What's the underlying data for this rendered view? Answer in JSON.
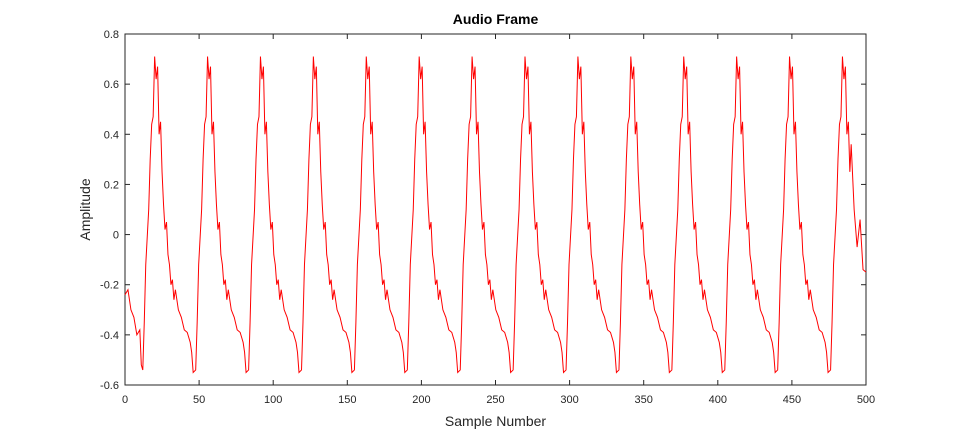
{
  "chart_data": {
    "type": "line",
    "title": "Audio Frame",
    "xlabel": "Sample Number",
    "ylabel": "Amplitude",
    "xlim": [
      0,
      500
    ],
    "ylim": [
      -0.6,
      0.8
    ],
    "xticks": [
      0,
      50,
      100,
      150,
      200,
      250,
      300,
      350,
      400,
      450,
      500
    ],
    "yticks": [
      -0.6,
      -0.4,
      -0.2,
      0,
      0.2,
      0.4,
      0.6,
      0.8
    ],
    "grid": false,
    "line_color": "#ff0000",
    "period_samples": 35.7,
    "series": [
      {
        "name": "Audio Frame",
        "waveform_cycle": [
          [
            0,
            -0.52
          ],
          [
            1,
            -0.54
          ],
          [
            2,
            -0.35
          ],
          [
            3,
            -0.12
          ],
          [
            5,
            0.1
          ],
          [
            6,
            0.3
          ],
          [
            7,
            0.44
          ],
          [
            8,
            0.47
          ],
          [
            9,
            0.71
          ],
          [
            10,
            0.62
          ],
          [
            11,
            0.67
          ],
          [
            12,
            0.4
          ],
          [
            13,
            0.45
          ],
          [
            14,
            0.25
          ],
          [
            15,
            0.12
          ],
          [
            16,
            0.02
          ],
          [
            17,
            0.05
          ],
          [
            18,
            -0.08
          ],
          [
            19,
            -0.12
          ],
          [
            20,
            -0.2
          ],
          [
            21,
            -0.18
          ],
          [
            22,
            -0.26
          ],
          [
            23,
            -0.22
          ],
          [
            25,
            -0.3
          ],
          [
            27,
            -0.33
          ],
          [
            29,
            -0.38
          ],
          [
            31,
            -0.39
          ],
          [
            33,
            -0.43
          ],
          [
            34,
            -0.47
          ],
          [
            35,
            -0.55
          ]
        ],
        "start": [
          [
            0,
            -0.24
          ],
          [
            2,
            -0.22
          ],
          [
            4,
            -0.3
          ],
          [
            6,
            -0.33
          ],
          [
            8,
            -0.4
          ],
          [
            10,
            -0.38
          ],
          [
            11,
            -0.52
          ]
        ],
        "end": [
          [
            490,
            0.36
          ],
          [
            492,
            0.1
          ],
          [
            494,
            -0.05
          ],
          [
            496,
            0.06
          ],
          [
            498,
            -0.14
          ],
          [
            500,
            -0.15
          ]
        ]
      }
    ]
  }
}
